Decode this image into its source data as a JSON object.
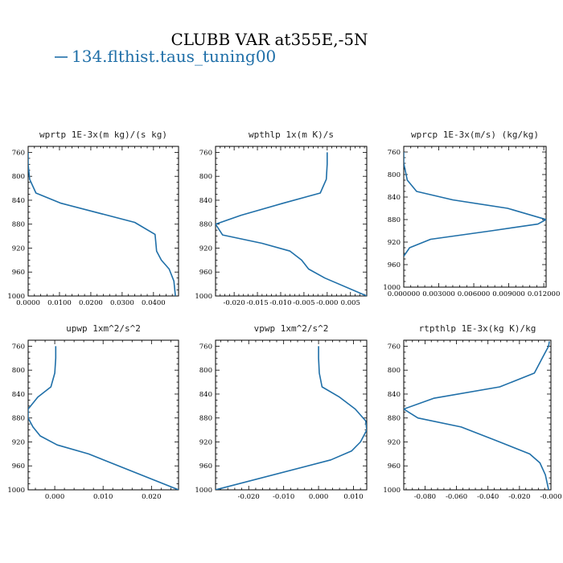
{
  "figure": {
    "title": "CLUBB VAR at355E,-5N",
    "legend_label": "134.flthist.taus_tuning00",
    "series_color": "#1f6fa8"
  },
  "chart_data": [
    {
      "type": "line",
      "title": "wprtp  1E-3x(m kg)/(s kg)",
      "xlim": [
        0.0,
        0.048
      ],
      "ylim": [
        1000,
        750
      ],
      "xticks": [
        0.0,
        0.01,
        0.02,
        0.03,
        0.04
      ],
      "xtick_labels": [
        "0.0000",
        "0.0100",
        "0.0200",
        "0.0300",
        "0.0400"
      ],
      "yticks": [
        760,
        800,
        840,
        880,
        920,
        960,
        1000
      ],
      "ytick_labels": [
        "760",
        "800",
        "840",
        "880",
        "920",
        "960",
        "1000"
      ],
      "series": [
        {
          "x": [
            0.0,
            0.0,
            0.0005,
            0.0025,
            0.0105,
            0.034,
            0.0405,
            0.041,
            0.0425,
            0.045,
            0.0465,
            0.047
          ],
          "y": [
            760,
            780,
            805,
            828,
            845,
            877,
            897,
            925,
            940,
            955,
            975,
            1000
          ]
        }
      ]
    },
    {
      "type": "line",
      "title": "wpthlp  1x(m K)/s",
      "xlim": [
        -0.024,
        0.0085
      ],
      "ylim": [
        1000,
        750
      ],
      "xticks": [
        -0.02,
        -0.015,
        -0.01,
        -0.005,
        0.0,
        0.005
      ],
      "xtick_labels": [
        "-0.020",
        "-0.015",
        "-0.010",
        "-0.005",
        "-0.000",
        "0.005"
      ],
      "yticks": [
        760,
        800,
        840,
        880,
        920,
        960,
        1000
      ],
      "ytick_labels": [
        "760",
        "800",
        "840",
        "880",
        "920",
        "960",
        "1000"
      ],
      "series": [
        {
          "x": [
            0.0,
            0.0,
            -0.0002,
            -0.0015,
            -0.0095,
            -0.0185,
            -0.024,
            -0.0225,
            -0.014,
            -0.008,
            -0.0055,
            -0.004,
            -0.0005,
            0.0085
          ],
          "y": [
            760,
            780,
            805,
            828,
            845,
            865,
            880,
            898,
            912,
            925,
            940,
            955,
            970,
            1000
          ]
        }
      ]
    },
    {
      "type": "line",
      "title": "wprcp  1E-3x(m/s) (kg/kg)",
      "xlim": [
        0.0,
        0.0122
      ],
      "ylim": [
        1000,
        750
      ],
      "xticks": [
        0.0,
        0.003,
        0.006,
        0.009,
        0.012
      ],
      "xtick_labels": [
        "0.000000",
        "0.003000",
        "0.006000",
        "0.009000",
        "0.012000"
      ],
      "yticks": [
        760,
        800,
        840,
        880,
        920,
        960,
        1000
      ],
      "ytick_labels": [
        "760",
        "800",
        "840",
        "880",
        "920",
        "960",
        "1000"
      ],
      "series": [
        {
          "x": [
            0.0,
            0.0,
            0.0003,
            0.0011,
            0.0042,
            0.0089,
            0.0122,
            0.0115,
            0.0075,
            0.0023,
            0.0005,
            0.0
          ],
          "y": [
            760,
            780,
            810,
            830,
            845,
            860,
            880,
            888,
            900,
            915,
            930,
            945
          ]
        }
      ]
    },
    {
      "type": "line",
      "title": "upwp  1xm^2/s^2",
      "xlim": [
        -0.0055,
        0.0256
      ],
      "ylim": [
        1000,
        750
      ],
      "xticks": [
        0.0,
        0.01,
        0.02
      ],
      "xtick_labels": [
        "0.000",
        "0.010",
        "0.020"
      ],
      "yticks": [
        760,
        800,
        840,
        880,
        920,
        960,
        1000
      ],
      "ytick_labels": [
        "760",
        "800",
        "840",
        "880",
        "920",
        "960",
        "1000"
      ],
      "series": [
        {
          "x": [
            0.0002,
            0.0002,
            0.0,
            -0.0008,
            -0.0035,
            -0.0055,
            -0.0055,
            -0.0045,
            -0.003,
            0.0005,
            0.007,
            0.0256
          ],
          "y": [
            760,
            780,
            805,
            828,
            845,
            865,
            880,
            895,
            910,
            925,
            940,
            1000
          ]
        }
      ]
    },
    {
      "type": "line",
      "title": "vpwp  1xm^2/s^2",
      "xlim": [
        -0.0295,
        0.0138
      ],
      "ylim": [
        1000,
        750
      ],
      "xticks": [
        -0.02,
        -0.01,
        0.0,
        0.01
      ],
      "xtick_labels": [
        "-0.020",
        "-0.010",
        "0.000",
        "0.010"
      ],
      "yticks": [
        760,
        800,
        840,
        880,
        920,
        960,
        1000
      ],
      "ytick_labels": [
        "760",
        "800",
        "840",
        "880",
        "920",
        "960",
        "1000"
      ],
      "series": [
        {
          "x": [
            0.0,
            0.0,
            0.0002,
            0.001,
            0.006,
            0.0105,
            0.0135,
            0.0138,
            0.012,
            0.0095,
            0.0035,
            -0.0295
          ],
          "y": [
            760,
            780,
            805,
            828,
            845,
            865,
            885,
            900,
            920,
            935,
            950,
            1000
          ]
        }
      ]
    },
    {
      "type": "line",
      "title": "rtpthlp  1E-3x(kg K)/kg",
      "xlim": [
        -0.0935,
        0.0
      ],
      "ylim": [
        1000,
        750
      ],
      "xticks": [
        -0.08,
        -0.06,
        -0.04,
        -0.02,
        0.0
      ],
      "xtick_labels": [
        "-0.080",
        "-0.060",
        "-0.040",
        "-0.020",
        "-0.000"
      ],
      "yticks": [
        760,
        800,
        840,
        880,
        920,
        960,
        1000
      ],
      "ytick_labels": [
        "760",
        "800",
        "840",
        "880",
        "920",
        "960",
        "1000"
      ],
      "series": [
        {
          "x": [
            -0.001,
            -0.0015,
            -0.0055,
            -0.0105,
            -0.0325,
            -0.0745,
            -0.0935,
            -0.0845,
            -0.057,
            -0.0355,
            -0.0135,
            -0.007,
            -0.0035,
            -0.0015
          ],
          "y": [
            752,
            760,
            780,
            805,
            828,
            847,
            865,
            880,
            895,
            917,
            940,
            955,
            975,
            1000
          ]
        }
      ]
    }
  ]
}
